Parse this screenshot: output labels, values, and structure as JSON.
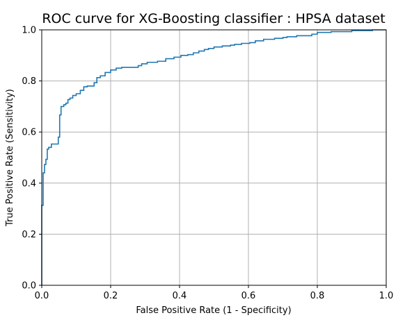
{
  "chart_data": {
    "type": "line",
    "title": "ROC curve for XG-Boosting classifier : HPSA dataset",
    "xlabel": "False Positive Rate (1 - Specificity)",
    "ylabel": "True Positive Rate (Sensitivity)",
    "xlim": [
      0.0,
      1.0
    ],
    "ylim": [
      0.0,
      1.0
    ],
    "xticks": [
      "0.0",
      "0.2",
      "0.4",
      "0.6",
      "0.8",
      "1.0"
    ],
    "yticks": [
      "0.0",
      "0.2",
      "0.4",
      "0.6",
      "0.8",
      "1.0"
    ],
    "grid": true,
    "line_color": "#1f77b4",
    "series": [
      {
        "x": [
          0.0,
          0.0,
          0.004,
          0.004,
          0.008,
          0.008,
          0.012,
          0.012,
          0.016,
          0.016,
          0.02,
          0.02,
          0.028,
          0.028,
          0.036,
          0.036,
          0.048,
          0.048,
          0.052,
          0.052,
          0.056,
          0.056,
          0.064,
          0.064,
          0.07,
          0.07,
          0.076,
          0.076,
          0.082,
          0.082,
          0.09,
          0.09,
          0.1,
          0.1,
          0.112,
          0.112,
          0.122,
          0.122,
          0.132,
          0.132,
          0.152,
          0.152,
          0.16,
          0.16,
          0.17,
          0.17,
          0.184,
          0.184,
          0.2,
          0.2,
          0.216,
          0.216,
          0.232,
          0.232,
          0.28,
          0.28,
          0.29,
          0.29,
          0.306,
          0.306,
          0.336,
          0.336,
          0.36,
          0.36,
          0.384,
          0.384,
          0.404,
          0.404,
          0.424,
          0.424,
          0.44,
          0.44,
          0.456,
          0.456,
          0.472,
          0.472,
          0.484,
          0.484,
          0.5,
          0.5,
          0.524,
          0.524,
          0.548,
          0.548,
          0.56,
          0.56,
          0.58,
          0.58,
          0.604,
          0.604,
          0.62,
          0.62,
          0.644,
          0.644,
          0.676,
          0.676,
          0.7,
          0.7,
          0.712,
          0.712,
          0.74,
          0.74,
          0.784,
          0.784,
          0.8,
          0.8,
          0.84,
          0.84,
          0.9,
          0.9,
          0.96,
          0.96,
          1.0
        ],
        "y": [
          0.0,
          0.313,
          0.313,
          0.44,
          0.44,
          0.473,
          0.473,
          0.493,
          0.493,
          0.533,
          0.533,
          0.54,
          0.54,
          0.553,
          0.553,
          0.553,
          0.553,
          0.58,
          0.58,
          0.667,
          0.667,
          0.7,
          0.7,
          0.707,
          0.707,
          0.713,
          0.713,
          0.727,
          0.727,
          0.733,
          0.733,
          0.743,
          0.743,
          0.75,
          0.75,
          0.763,
          0.763,
          0.777,
          0.777,
          0.78,
          0.78,
          0.793,
          0.793,
          0.813,
          0.813,
          0.82,
          0.82,
          0.833,
          0.833,
          0.843,
          0.843,
          0.85,
          0.85,
          0.853,
          0.853,
          0.86,
          0.86,
          0.867,
          0.867,
          0.873,
          0.873,
          0.877,
          0.877,
          0.887,
          0.887,
          0.893,
          0.893,
          0.9,
          0.9,
          0.903,
          0.903,
          0.91,
          0.91,
          0.917,
          0.917,
          0.923,
          0.923,
          0.927,
          0.927,
          0.933,
          0.933,
          0.937,
          0.937,
          0.94,
          0.94,
          0.943,
          0.943,
          0.947,
          0.947,
          0.95,
          0.95,
          0.957,
          0.957,
          0.963,
          0.963,
          0.967,
          0.967,
          0.97,
          0.97,
          0.973,
          0.973,
          0.977,
          0.977,
          0.983,
          0.983,
          0.99,
          0.99,
          0.993,
          0.993,
          0.997,
          0.997,
          1.0,
          1.0
        ]
      }
    ]
  }
}
